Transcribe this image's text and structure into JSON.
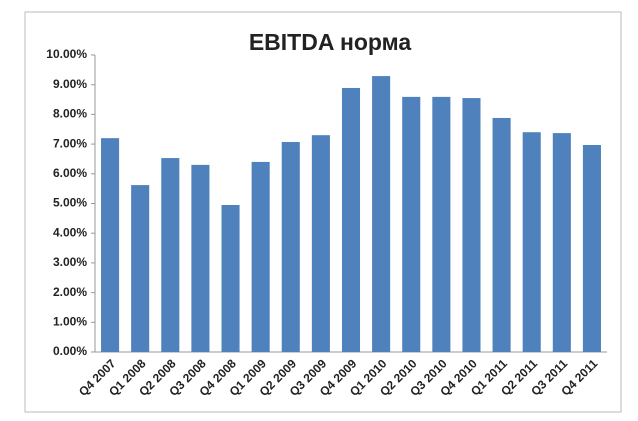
{
  "chart_data": {
    "type": "bar",
    "title": "EBITDA норма",
    "categories": [
      "Q4 2007",
      "Q1 2008",
      "Q2 2008",
      "Q3 2008",
      "Q4 2008",
      "Q1 2009",
      "Q2 2009",
      "Q3 2009",
      "Q4 2009",
      "Q1 2010",
      "Q2 2010",
      "Q3 2010",
      "Q4 2010",
      "Q1 2011",
      "Q2 2011",
      "Q3 2011",
      "Q4 2011"
    ],
    "values": [
      7.2,
      5.62,
      6.53,
      6.3,
      4.95,
      6.4,
      7.07,
      7.3,
      8.89,
      9.29,
      8.59,
      8.59,
      8.55,
      7.88,
      7.4,
      7.37,
      6.97
    ],
    "color": "#4f81bd",
    "ylim": [
      0,
      10
    ],
    "yticks": [
      {
        "value": 0,
        "label": "0.00%"
      },
      {
        "value": 1,
        "label": "1.00%"
      },
      {
        "value": 2,
        "label": "2.00%"
      },
      {
        "value": 3,
        "label": "3.00%"
      },
      {
        "value": 4,
        "label": "4.00%"
      },
      {
        "value": 5,
        "label": "5.00%"
      },
      {
        "value": 6,
        "label": "6.00%"
      },
      {
        "value": 7,
        "label": "7.00%"
      },
      {
        "value": 8,
        "label": "8.00%"
      },
      {
        "value": 9,
        "label": "9.00%"
      },
      {
        "value": 10,
        "label": "10.00%"
      }
    ],
    "grid": false
  }
}
